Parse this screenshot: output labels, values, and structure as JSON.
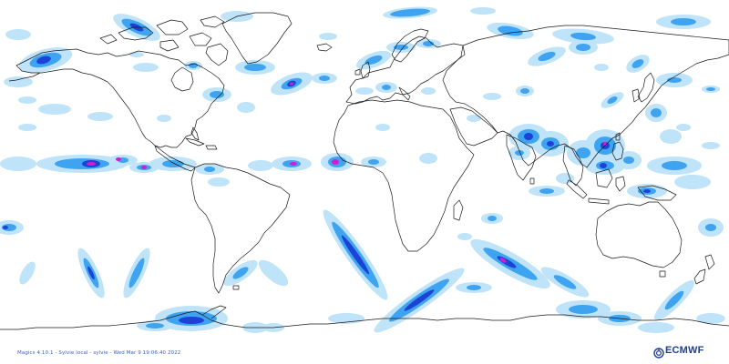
{
  "map": {
    "projection": "plate-carree",
    "field": "precipitation-intensity",
    "palette": {
      "light": "#bfe3f8",
      "medium": "#3ea3f0",
      "strong": "#1d43d6",
      "extreme": "#d21cd2",
      "coastline": "#1a1a1a"
    },
    "background": "#ffffff"
  },
  "footer": {
    "credit": "Magics 4.10.1 - Sylvie local - sylvie - Wed Mar  9 19:06:40 2022",
    "logo_text": "ECMWF",
    "logo_icon": "ecmwf-swirl-icon"
  }
}
